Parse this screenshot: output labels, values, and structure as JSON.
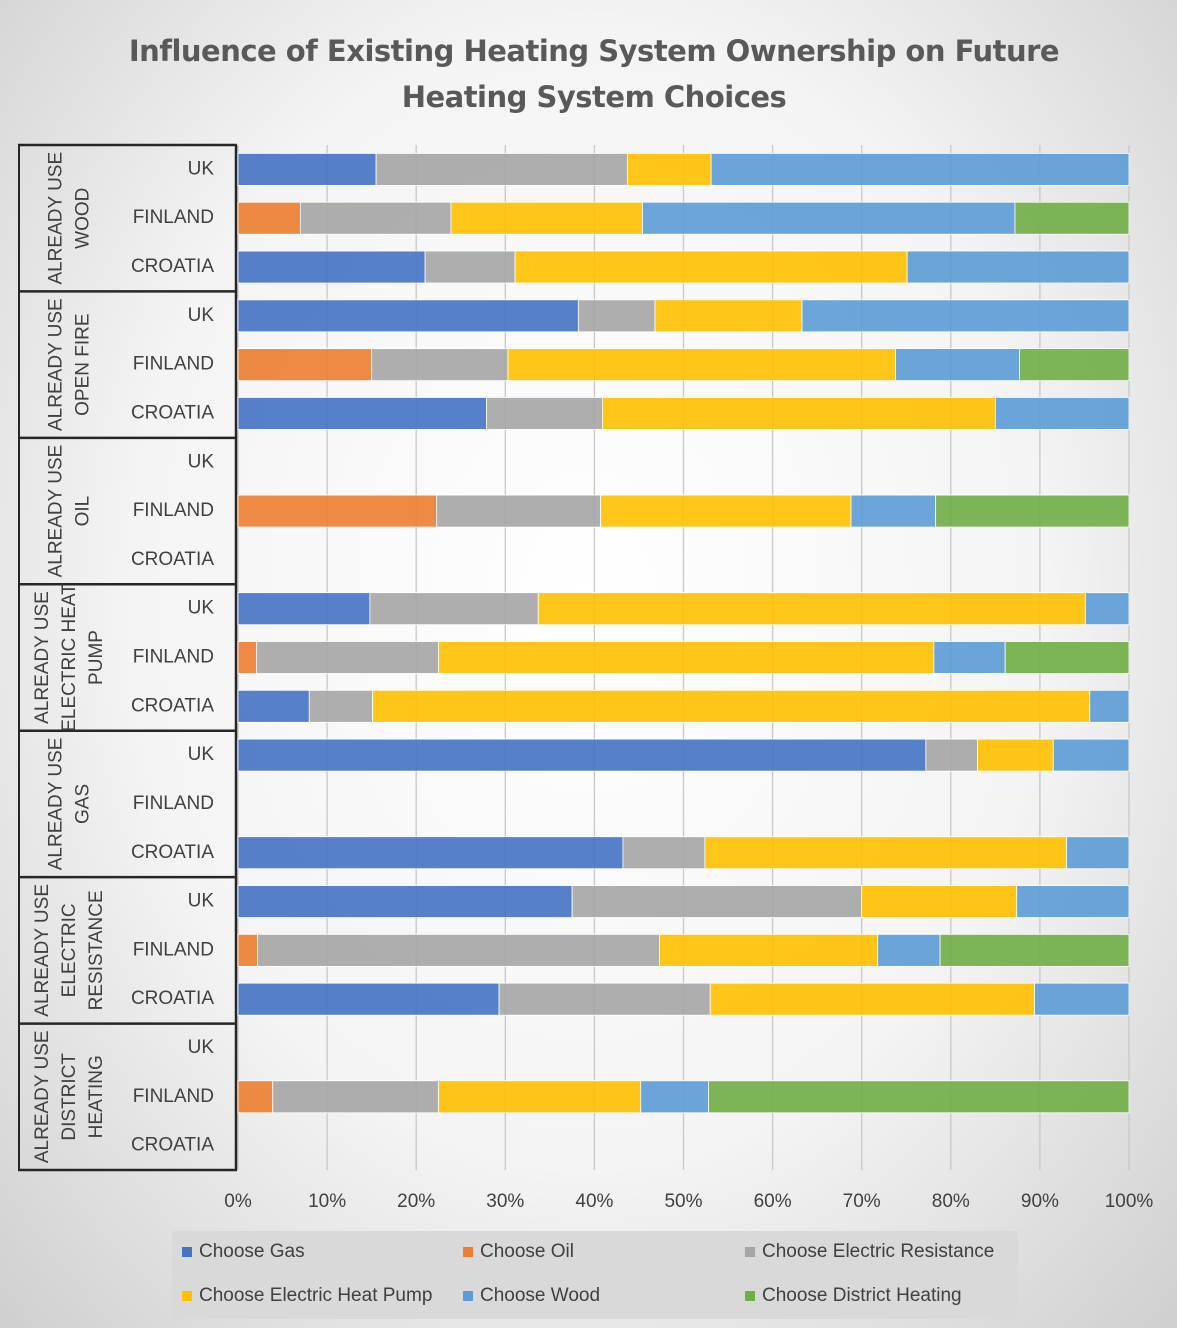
{
  "chart_data": {
    "type": "stacked-bar-horizontal",
    "title": "Influence of Existing Heating System Ownership on Future Heating System Choices",
    "groups": [
      {
        "label": [
          "ALREADY USE",
          "WOOD"
        ]
      },
      {
        "label": [
          "ALREADY USE",
          "OPEN FIRE"
        ]
      },
      {
        "label": [
          "ALREADY USE",
          "OIL"
        ]
      },
      {
        "label": [
          "ALREADY USE",
          "ELECTRIC HEAT",
          "PUMP"
        ]
      },
      {
        "label": [
          "ALREADY USE",
          "GAS"
        ]
      },
      {
        "label": [
          "ALREADY USE",
          "ELECTRIC",
          "RESISTANCE"
        ]
      },
      {
        "label": [
          "ALREADY USE",
          "DISTRICT",
          "HEATING"
        ]
      }
    ],
    "categories": [
      "UK",
      "FINLAND",
      "CROATIA",
      "UK",
      "FINLAND",
      "CROATIA",
      "UK",
      "FINLAND",
      "CROATIA",
      "UK",
      "FINLAND",
      "CROATIA",
      "UK",
      "FINLAND",
      "CROATIA",
      "UK",
      "FINLAND",
      "CROATIA",
      "UK",
      "FINLAND",
      "CROATIA"
    ],
    "series": [
      {
        "name": "Choose Gas",
        "color": "#4472c4",
        "values": [
          15.5,
          null,
          21.0,
          38.2,
          null,
          27.9,
          null,
          null,
          null,
          14.8,
          null,
          8.0,
          77.2,
          null,
          43.2,
          37.5,
          null,
          29.3,
          null,
          null,
          null
        ]
      },
      {
        "name": "Choose Oil",
        "color": "#ed7d31",
        "values": [
          null,
          7.0,
          null,
          null,
          15.0,
          null,
          null,
          22.3,
          null,
          null,
          2.1,
          null,
          null,
          null,
          null,
          null,
          2.2,
          null,
          null,
          3.9,
          null
        ]
      },
      {
        "name": "Choose Electric Resistance",
        "color": "#a5a5a5",
        "values": [
          28.2,
          16.9,
          10.1,
          8.6,
          15.3,
          13.0,
          null,
          18.4,
          null,
          18.9,
          20.4,
          7.1,
          5.8,
          null,
          9.2,
          32.5,
          45.1,
          23.7,
          null,
          18.6,
          null
        ]
      },
      {
        "name": "Choose Electric Heat Pump",
        "color": "#ffc000",
        "values": [
          9.4,
          21.5,
          44.0,
          16.5,
          43.5,
          44.1,
          null,
          28.1,
          null,
          61.4,
          55.6,
          80.5,
          8.5,
          null,
          40.6,
          17.4,
          24.5,
          36.4,
          null,
          22.7,
          null
        ]
      },
      {
        "name": "Choose Wood",
        "color": "#5b9bd5",
        "values": [
          46.9,
          41.8,
          24.9,
          36.7,
          13.9,
          15.0,
          null,
          9.5,
          null,
          4.9,
          8.0,
          4.4,
          8.5,
          null,
          7.0,
          12.6,
          7.0,
          10.6,
          null,
          7.6,
          null
        ]
      },
      {
        "name": "Choose District Heating",
        "color": "#70ad47",
        "values": [
          null,
          12.8,
          null,
          null,
          12.3,
          null,
          null,
          21.7,
          null,
          null,
          13.9,
          null,
          null,
          null,
          null,
          null,
          21.2,
          null,
          null,
          47.2,
          null
        ]
      }
    ],
    "xlim": [
      0,
      100
    ],
    "xticks": [
      {
        "value": 0,
        "label": "0%"
      },
      {
        "value": 10,
        "label": "10%"
      },
      {
        "value": 20,
        "label": "20%"
      },
      {
        "value": 30,
        "label": "30%"
      },
      {
        "value": 40,
        "label": "40%"
      },
      {
        "value": 50,
        "label": "50%"
      },
      {
        "value": 60,
        "label": "60%"
      },
      {
        "value": 70,
        "label": "70%"
      },
      {
        "value": 80,
        "label": "80%"
      },
      {
        "value": 90,
        "label": "90%"
      },
      {
        "value": 100,
        "label": "100%"
      }
    ],
    "grid": true
  }
}
